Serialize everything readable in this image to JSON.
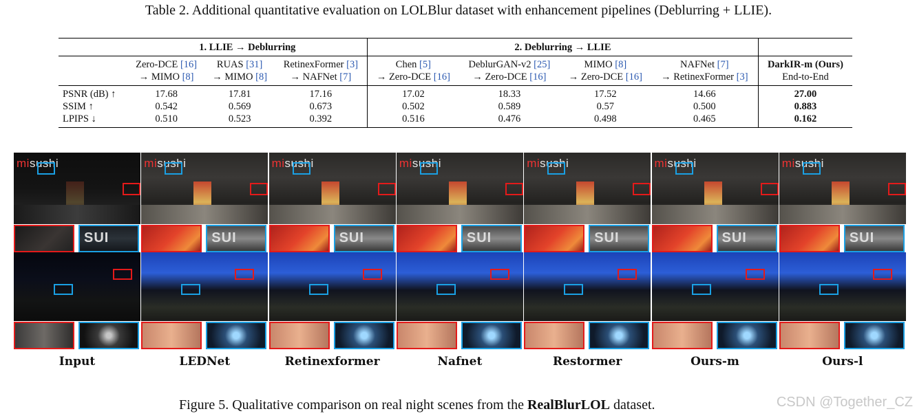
{
  "table_caption": "Table 2. Additional quantitative evaluation on LOLBlur dataset with enhancement pipelines (Deblurring + LLIE).",
  "groups": {
    "g1": "1. LLIE → Deblurring",
    "g2": "2. Deblurring → LLIE"
  },
  "methods": [
    {
      "l1": "Zero-DCE",
      "c1": "[16]",
      "l2": "→ MIMO",
      "c2": "[8]"
    },
    {
      "l1": "RUAS",
      "c1": "[31]",
      "l2": "→ MIMO",
      "c2": "[8]"
    },
    {
      "l1": "RetinexFormer",
      "c1": "[3]",
      "l2": "→ NAFNet",
      "c2": "[7]"
    },
    {
      "l1": "Chen",
      "c1": "[5]",
      "l2": "→ Zero-DCE",
      "c2": "[16]"
    },
    {
      "l1": "DeblurGAN-v2",
      "c1": "[25]",
      "l2": "→ Zero-DCE",
      "c2": "[16]"
    },
    {
      "l1": "MIMO",
      "c1": "[8]",
      "l2": "→ Zero-DCE",
      "c2": "[16]"
    },
    {
      "l1": "NAFNet",
      "c1": "[7]",
      "l2": "→ RetinexFormer",
      "c2": "[3]"
    }
  ],
  "ours": {
    "l1": "DarkIR-m (Ours)",
    "l2": "End-to-End"
  },
  "rows": [
    {
      "metric": "PSNR (dB) ↑",
      "values": [
        "17.68",
        "17.81",
        "17.16",
        "17.02",
        "18.33",
        "17.52",
        "14.66"
      ],
      "ours": "27.00"
    },
    {
      "metric": "SSIM ↑",
      "values": [
        "0.542",
        "0.569",
        "0.673",
        "0.502",
        "0.589",
        "0.57",
        "0.500"
      ],
      "ours": "0.883"
    },
    {
      "metric": "LPIPS ↓",
      "values": [
        "0.510",
        "0.523",
        "0.392",
        "0.516",
        "0.476",
        "0.498",
        "0.465"
      ],
      "ours": "0.162"
    }
  ],
  "figure": {
    "sign_text_prefix": "mi",
    "sign_text_rest": "sushi",
    "crop_text": "SUI",
    "labels": [
      "Input",
      "LEDNet",
      "Retinexformer",
      "Nafnet",
      "Restormer",
      "Ours-m",
      "Ours-l"
    ]
  },
  "figure_caption": {
    "prefix": "Figure 5. Qualitative comparison on real night scenes from the ",
    "bold": "RealBlurLOL",
    "suffix": " dataset."
  },
  "watermark": "CSDN @Together_CZ",
  "colors": {
    "citation": "#2a58b0",
    "box_red": "#e41a1a",
    "box_blue": "#1aa0e4"
  }
}
